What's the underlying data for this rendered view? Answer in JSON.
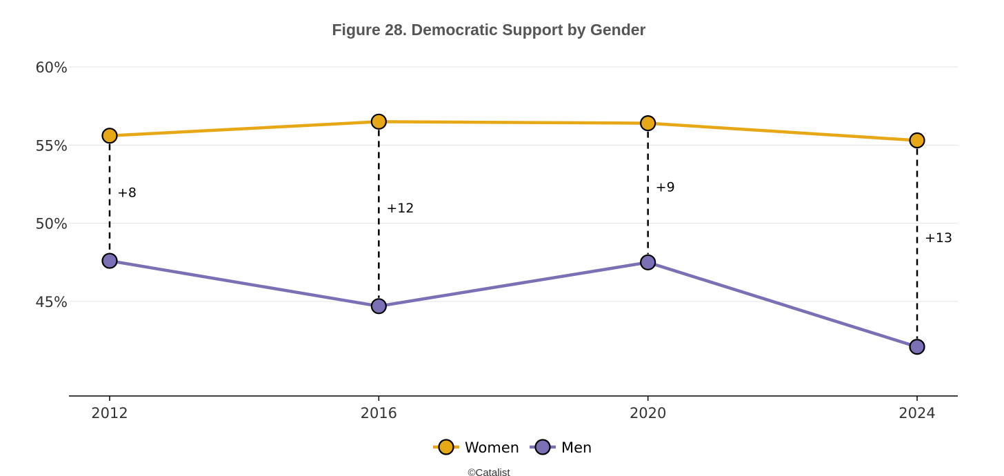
{
  "chart_data": {
    "type": "line",
    "title": "Figure 28. Democratic Support by Gender",
    "x": [
      "2012",
      "2016",
      "2020",
      "2024"
    ],
    "ylim": [
      39,
      61
    ],
    "ytick_values": [
      45,
      50,
      55,
      60
    ],
    "ytick_labels": [
      "45%",
      "50%",
      "55%",
      "60%"
    ],
    "grid": true,
    "series": [
      {
        "name": "Women",
        "color": "#E6A817",
        "values": [
          55.6,
          56.5,
          56.4,
          55.3
        ]
      },
      {
        "name": "Men",
        "color": "#7B6FB5",
        "values": [
          47.6,
          44.7,
          47.5,
          42.1
        ]
      }
    ],
    "gap_labels": [
      "+8",
      "+12",
      "+9",
      "+13"
    ],
    "legend_position": "bottom-center",
    "credit": "©Catalist"
  }
}
